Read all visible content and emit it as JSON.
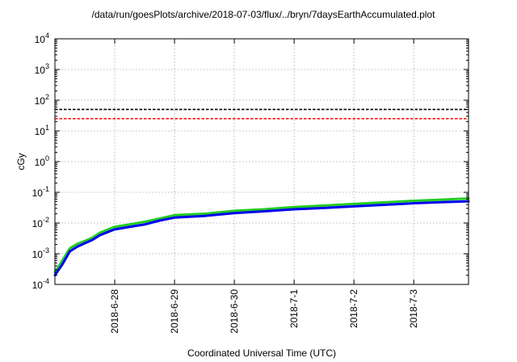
{
  "chart_data": {
    "type": "line",
    "title": "/data/run/goesPlots/archive/2018-07-03/flux/../bryn/7daysEarthAccumulated.plot",
    "xlabel": "Coordinated Universal Time (UTC)",
    "ylabel": "cGy",
    "yscale": "log",
    "ylim": [
      0.0001,
      10000
    ],
    "xlim": [
      "2018-06-27 00:00",
      "2018-07-03 22:00"
    ],
    "grid": true,
    "yticks": [
      {
        "value": 0.0001,
        "base": "10",
        "exp": "-4"
      },
      {
        "value": 0.001,
        "base": "10",
        "exp": "-3"
      },
      {
        "value": 0.01,
        "base": "10",
        "exp": "-2"
      },
      {
        "value": 0.1,
        "base": "10",
        "exp": "-1"
      },
      {
        "value": 1,
        "base": "10",
        "exp": "0"
      },
      {
        "value": 10,
        "base": "10",
        "exp": "1"
      },
      {
        "value": 100,
        "base": "10",
        "exp": "2"
      },
      {
        "value": 1000,
        "base": "10",
        "exp": "3"
      },
      {
        "value": 10000,
        "base": "10",
        "exp": "4"
      }
    ],
    "xticks": [
      {
        "value": "2018-06-28 00:00",
        "label": "2018-6-28"
      },
      {
        "value": "2018-06-29 00:00",
        "label": "2018-6-29"
      },
      {
        "value": "2018-06-30 00:00",
        "label": "2018-6-30"
      },
      {
        "value": "2018-07-01 00:00",
        "label": "2018-7-1"
      },
      {
        "value": "2018-07-02 00:00",
        "label": "2018-7-2"
      },
      {
        "value": "2018-07-03 00:00",
        "label": "2018-7-3"
      }
    ],
    "thresholds": [
      {
        "value": 50,
        "color": "#000000"
      },
      {
        "value": 25,
        "color": "#ff0000"
      }
    ],
    "series": [
      {
        "color": "#22cc22",
        "points": [
          [
            "2018-06-27 00:00",
            0.00025
          ],
          [
            "2018-06-27 03:00",
            0.0006
          ],
          [
            "2018-06-27 06:00",
            0.0015
          ],
          [
            "2018-06-27 09:00",
            0.0021
          ],
          [
            "2018-06-27 12:00",
            0.0026
          ],
          [
            "2018-06-27 15:00",
            0.0033
          ],
          [
            "2018-06-27 18:00",
            0.0048
          ],
          [
            "2018-06-27 21:00",
            0.006
          ],
          [
            "2018-06-28 00:00",
            0.0075
          ],
          [
            "2018-06-28 06:00",
            0.009
          ],
          [
            "2018-06-28 12:00",
            0.011
          ],
          [
            "2018-06-28 18:00",
            0.014
          ],
          [
            "2018-06-29 00:00",
            0.018
          ],
          [
            "2018-06-29 12:00",
            0.02
          ],
          [
            "2018-06-30 00:00",
            0.025
          ],
          [
            "2018-06-30 12:00",
            0.028
          ],
          [
            "2018-07-01 00:00",
            0.033
          ],
          [
            "2018-07-01 12:00",
            0.037
          ],
          [
            "2018-07-02 00:00",
            0.042
          ],
          [
            "2018-07-02 12:00",
            0.047
          ],
          [
            "2018-07-03 00:00",
            0.053
          ],
          [
            "2018-07-03 12:00",
            0.058
          ],
          [
            "2018-07-03 22:00",
            0.063
          ]
        ]
      },
      {
        "color": "#0000ee",
        "points": [
          [
            "2018-06-27 00:00",
            0.0002
          ],
          [
            "2018-06-27 03:00",
            0.00045
          ],
          [
            "2018-06-27 06:00",
            0.0012
          ],
          [
            "2018-06-27 09:00",
            0.0017
          ],
          [
            "2018-06-27 12:00",
            0.0022
          ],
          [
            "2018-06-27 15:00",
            0.0028
          ],
          [
            "2018-06-27 18:00",
            0.004
          ],
          [
            "2018-06-27 21:00",
            0.005
          ],
          [
            "2018-06-28 00:00",
            0.0062
          ],
          [
            "2018-06-28 06:00",
            0.0075
          ],
          [
            "2018-06-28 12:00",
            0.009
          ],
          [
            "2018-06-28 18:00",
            0.012
          ],
          [
            "2018-06-29 00:00",
            0.015
          ],
          [
            "2018-06-29 12:00",
            0.017
          ],
          [
            "2018-06-30 00:00",
            0.021
          ],
          [
            "2018-06-30 12:00",
            0.024
          ],
          [
            "2018-07-01 00:00",
            0.028
          ],
          [
            "2018-07-01 12:00",
            0.031
          ],
          [
            "2018-07-02 00:00",
            0.035
          ],
          [
            "2018-07-02 12:00",
            0.039
          ],
          [
            "2018-07-03 00:00",
            0.044
          ],
          [
            "2018-07-03 12:00",
            0.048
          ],
          [
            "2018-07-03 22:00",
            0.051
          ]
        ]
      }
    ]
  }
}
